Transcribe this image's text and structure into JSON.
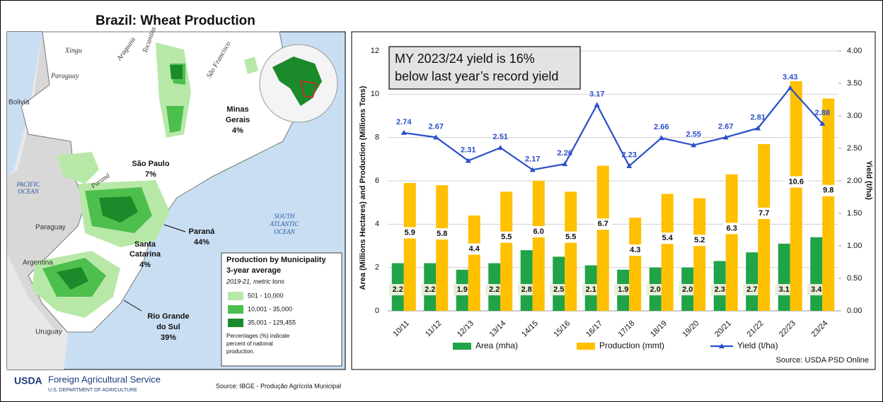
{
  "map": {
    "title": "Brazil: Wheat Production",
    "rivers": [
      "Xingu",
      "Araguaia",
      "Tocantins",
      "São Francisco",
      "Paraguay",
      "Paraná"
    ],
    "countries": [
      "Bolivia",
      "Paraguay",
      "Argentina",
      "Uruguay"
    ],
    "oceans": {
      "pacific": [
        "PACIFIC",
        "OCEAN"
      ],
      "atlantic": [
        "SOUTH",
        "ATLANTIC",
        "OCEAN"
      ]
    },
    "states": [
      {
        "name": [
          "Minas",
          "Gerais"
        ],
        "share": "4%"
      },
      {
        "name": [
          "São Paulo"
        ],
        "share": "7%"
      },
      {
        "name": [
          "Paraná"
        ],
        "share": "44%"
      },
      {
        "name": [
          "Santa",
          "Catarina"
        ],
        "share": "4%"
      },
      {
        "name": [
          "Rio Grande",
          "do Sul"
        ],
        "share": "39%"
      }
    ],
    "legend": {
      "title": [
        "Production by Municipality",
        "3-year average"
      ],
      "subtitle": "2019-21, metric tons",
      "items": [
        {
          "label": "501 - 10,000",
          "color": "#b8e8a8"
        },
        {
          "label": "10,001 - 35,000",
          "color": "#4cbf4c"
        },
        {
          "label": "35,001 - 129,455",
          "color": "#1a8a2a"
        }
      ],
      "note": [
        "Percentages (%) indicate",
        "percent of national",
        "production."
      ]
    },
    "source": "Source: IBGE - Produção Agrícola Municipal"
  },
  "footer": {
    "logo": "USDA",
    "agency": "Foreign Agricultural Service",
    "department": "U.S. DEPARTMENT OF AGRICULTURE"
  },
  "chart_data": {
    "type": "bar",
    "annotation": [
      "MY 2023/24 yield is 16%",
      "below last year’s record yield"
    ],
    "ylabel": "Area (Millions Hectares) and Production (Millions Tons)",
    "y2label": "Yield  (t/ha)",
    "source": "Source: USDA PSD Online",
    "categories": [
      "10/11",
      "11/12",
      "12/13",
      "13/14",
      "14/15",
      "15/16",
      "16/17",
      "17/18",
      "18/19",
      "19/20",
      "20/21",
      "21/22",
      "22/23",
      "23/24"
    ],
    "series": [
      {
        "name": "Area (mha)",
        "color": "#21a347",
        "type": "bar",
        "values": [
          2.2,
          2.2,
          1.9,
          2.2,
          2.8,
          2.5,
          2.1,
          1.9,
          2.0,
          2.0,
          2.3,
          2.7,
          3.1,
          3.4
        ],
        "value_labels": [
          "2.2",
          "2.2",
          "1.9",
          "2.2",
          "2.8",
          "2.5",
          "2.1",
          "1.9",
          "2.0",
          "2.0",
          "2.3",
          "2.7",
          "3.1",
          "3.4"
        ]
      },
      {
        "name": "Production (mmt)",
        "color": "#ffc000",
        "type": "bar",
        "values": [
          5.9,
          5.8,
          4.4,
          5.5,
          6.0,
          5.5,
          6.7,
          4.3,
          5.4,
          5.2,
          6.3,
          7.7,
          10.6,
          9.8
        ],
        "value_labels": [
          "5.9",
          "5.8",
          "4.4",
          "5.5",
          "6.0",
          "5.5",
          "6.7",
          "4.3",
          "5.4",
          "5.2",
          "6.3",
          "7.7",
          "10.6",
          "9.8"
        ]
      },
      {
        "name": "Yield (t/ha)",
        "color": "#2a4fc8",
        "type": "line",
        "axis": "y2",
        "values": [
          2.74,
          2.67,
          2.31,
          2.51,
          2.17,
          2.26,
          3.17,
          2.23,
          2.66,
          2.55,
          2.67,
          2.81,
          3.43,
          2.88
        ]
      }
    ],
    "ylim": [
      0,
      12
    ],
    "yticks": [
      0,
      2,
      4,
      6,
      8,
      10,
      12
    ],
    "y2lim": [
      0,
      4
    ],
    "y2ticks": [
      {
        "value": 0,
        "label": "0.00"
      },
      {
        "value": 0.5,
        "label": "0.50"
      },
      {
        "value": 1,
        "label": "1.00"
      },
      {
        "value": 1.5,
        "label": "1.50"
      },
      {
        "value": 2,
        "label": "2.00"
      },
      {
        "value": 2.5,
        "label": "2.50"
      },
      {
        "value": 3,
        "label": "3.00"
      },
      {
        "value": 3.5,
        "label": "3.50"
      },
      {
        "value": 4,
        "label": "4.00"
      }
    ],
    "grid": true
  }
}
